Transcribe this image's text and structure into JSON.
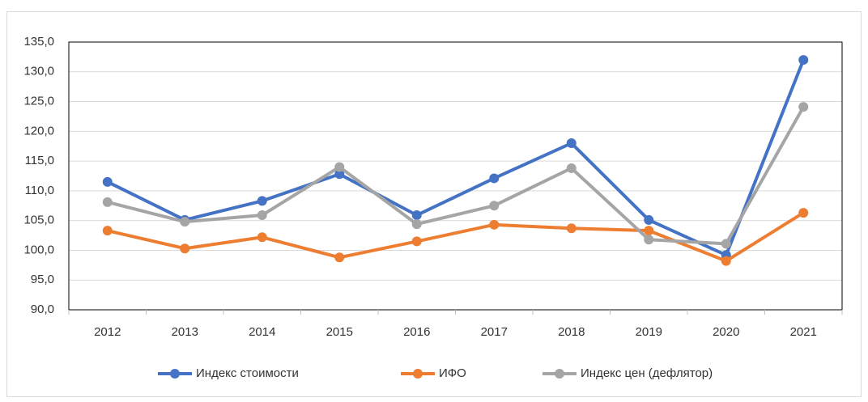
{
  "chart_data": {
    "type": "line",
    "categories": [
      "2012",
      "2013",
      "2014",
      "2015",
      "2016",
      "2017",
      "2018",
      "2019",
      "2020",
      "2021"
    ],
    "series": [
      {
        "name": "Индекс стоимости",
        "color": "#4472c4",
        "values": [
          111.5,
          105.1,
          108.3,
          112.8,
          105.9,
          112.1,
          118.0,
          105.1,
          99.2,
          132.0
        ]
      },
      {
        "name": "ИФО",
        "color": "#ed7d31",
        "values": [
          103.3,
          100.3,
          102.2,
          98.8,
          101.5,
          104.3,
          103.7,
          103.3,
          98.2,
          106.3
        ]
      },
      {
        "name": "Индекс цен (дефлятор)",
        "color": "#a5a5a5",
        "values": [
          108.1,
          104.8,
          105.9,
          114.0,
          104.4,
          107.5,
          113.8,
          101.8,
          101.1,
          124.1
        ]
      }
    ],
    "ylim": [
      90,
      135
    ],
    "yticks": [
      {
        "value": 90,
        "label": "90,0"
      },
      {
        "value": 95,
        "label": "95,0"
      },
      {
        "value": 100,
        "label": "100,0"
      },
      {
        "value": 105,
        "label": "105,0"
      },
      {
        "value": 110,
        "label": "110,0"
      },
      {
        "value": 115,
        "label": "115,0"
      },
      {
        "value": 120,
        "label": "120,0"
      },
      {
        "value": 125,
        "label": "125,0"
      },
      {
        "value": 130,
        "label": "130,0"
      },
      {
        "value": 135,
        "label": "135,0"
      }
    ],
    "grid": true,
    "legend": "bottom"
  }
}
